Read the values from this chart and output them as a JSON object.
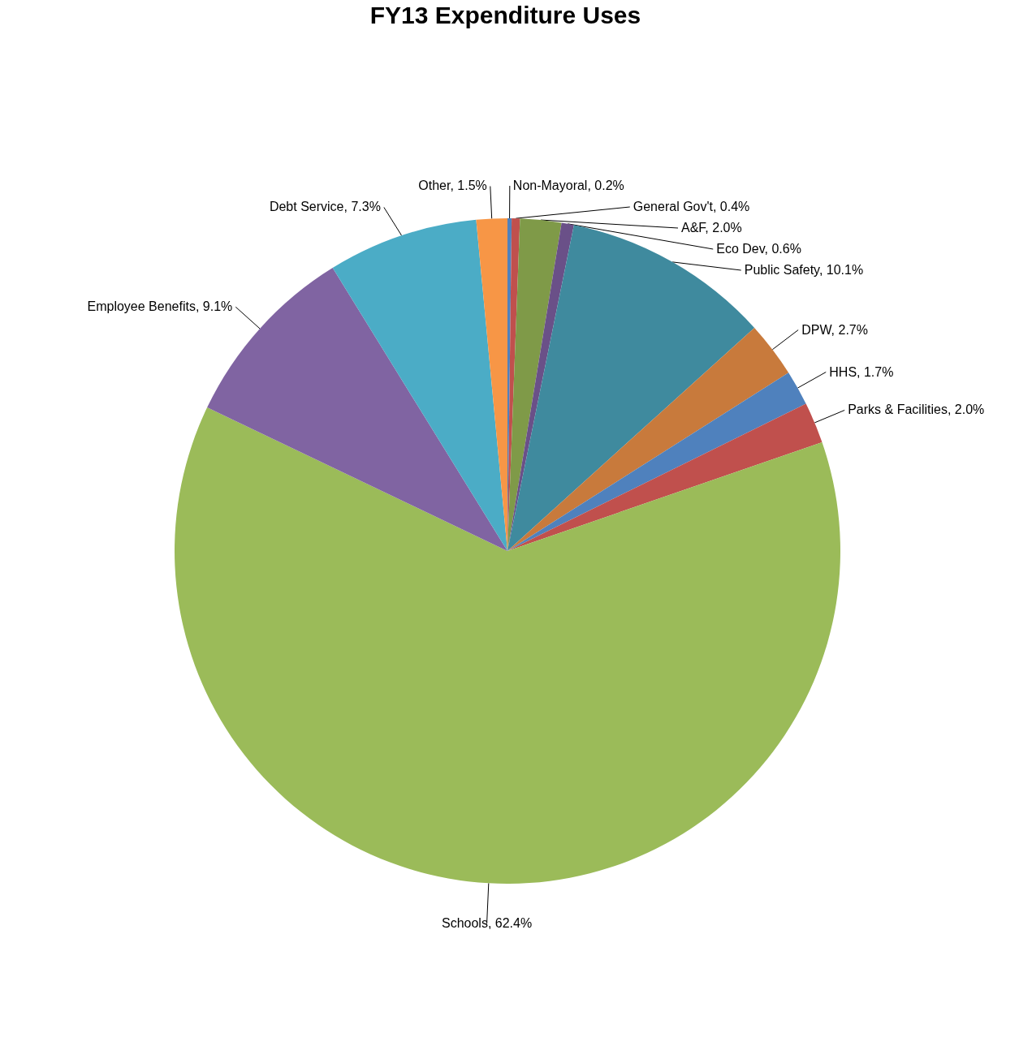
{
  "chart_data": {
    "type": "pie",
    "title": "FY13 Expenditure Uses",
    "categories": [
      "Non-Mayoral",
      "General Gov't",
      "A&F",
      "Eco Dev",
      "Public Safety",
      "DPW",
      "HHS",
      "Parks & Facilities",
      "Schools",
      "Employee Benefits",
      "Debt Service",
      "Other"
    ],
    "values": [
      0.2,
      0.4,
      2.0,
      0.6,
      10.1,
      2.7,
      1.7,
      2.0,
      62.4,
      9.1,
      7.3,
      1.5
    ],
    "value_labels": [
      "0.2%",
      "0.4%",
      "2.0%",
      "0.6%",
      "10.1%",
      "2.7%",
      "1.7%",
      "2.0%",
      "62.4%",
      "9.1%",
      "7.3%",
      "1.5%"
    ],
    "colors": [
      "#4f81bd",
      "#c0504d",
      "#7f9a48",
      "#6a5088",
      "#3f8a9e",
      "#c87a3c",
      "#4f81bd",
      "#c0504d",
      "#9bbb59",
      "#8064a2",
      "#4bacc6",
      "#f79646"
    ]
  }
}
